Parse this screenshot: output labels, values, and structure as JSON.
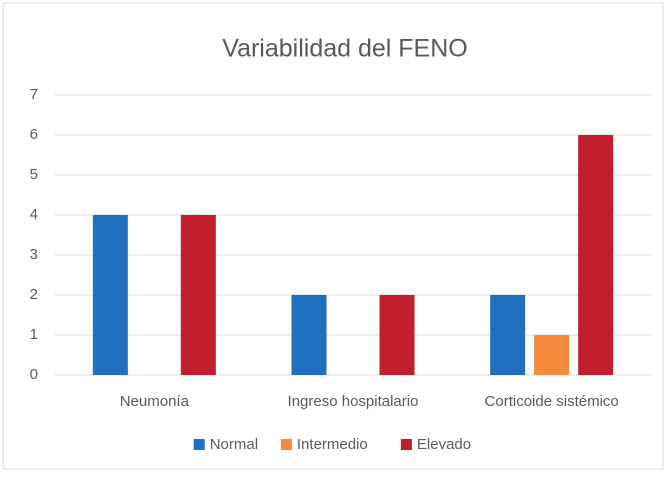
{
  "chart_data": {
    "type": "bar",
    "title": "Variabilidad del FENO",
    "categories": [
      "Neumonía",
      "Ingreso hospitalario",
      "Corticoide sistémico"
    ],
    "series": [
      {
        "name": "Normal",
        "color": "#1f70c1",
        "values": [
          4,
          2,
          2
        ]
      },
      {
        "name": "Intermedio",
        "color": "#f2893b",
        "values": [
          0,
          0,
          1
        ]
      },
      {
        "name": "Elevado",
        "color": "#c01f2b",
        "values": [
          4,
          2,
          6
        ]
      }
    ],
    "ylim": [
      0,
      7
    ],
    "yticks": [
      0,
      1,
      2,
      3,
      4,
      5,
      6,
      7
    ],
    "grid": true,
    "legend": "bottom"
  }
}
